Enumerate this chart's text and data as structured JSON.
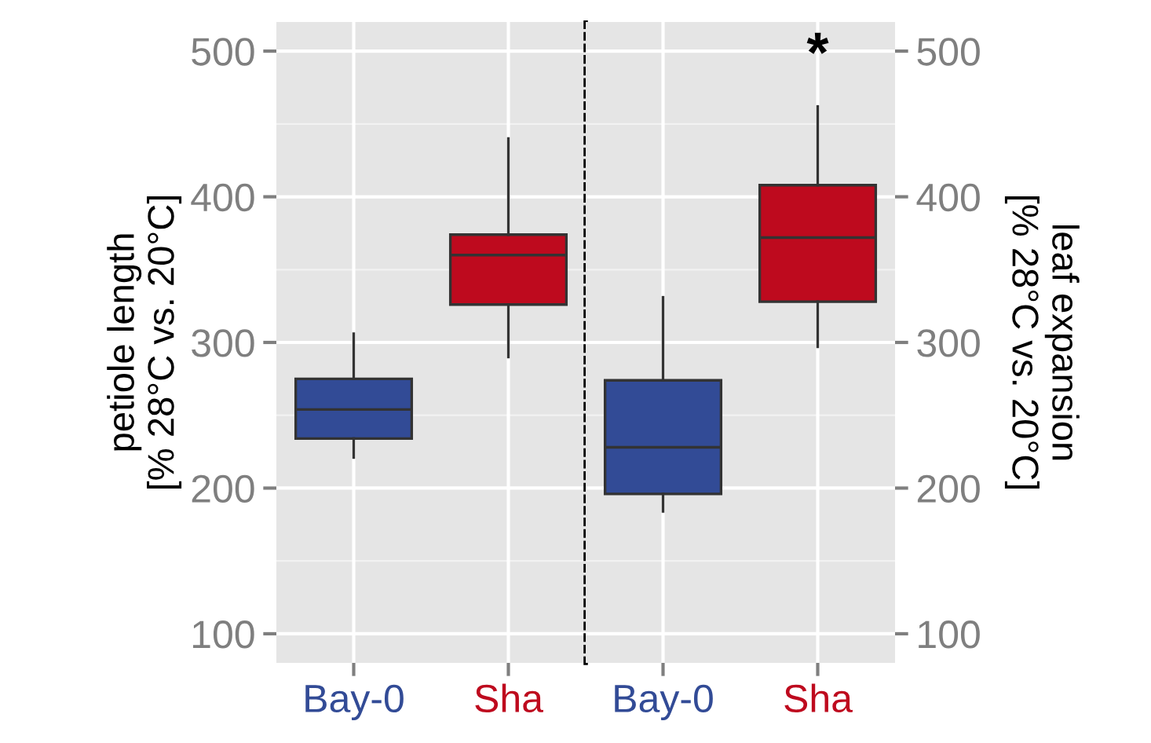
{
  "chart_data": [
    {
      "type": "box",
      "ylabel": "petiole length\n[% 28°C vs. 20°C]",
      "categories": [
        "Bay-0",
        "Sha"
      ],
      "colors": [
        "#324b96",
        "#be0a1e"
      ],
      "boxes": [
        {
          "low": 221,
          "q1": 234,
          "median": 254,
          "q3": 275,
          "high": 306
        },
        {
          "low": 290,
          "q1": 326,
          "median": 360,
          "q3": 374,
          "high": 440
        }
      ],
      "ylim": [
        80,
        520
      ],
      "yticks": [
        100,
        200,
        300,
        400,
        500
      ],
      "grid": true
    },
    {
      "type": "box",
      "ylabel": "leaf expansion\n[% 28°C vs. 20°C]",
      "categories": [
        "Bay-0",
        "Sha"
      ],
      "colors": [
        "#324b96",
        "#be0a1e"
      ],
      "boxes": [
        {
          "low": 184,
          "q1": 196,
          "median": 228,
          "q3": 274,
          "high": 331
        },
        {
          "low": 297,
          "q1": 328,
          "median": 372,
          "q3": 408,
          "high": 462
        }
      ],
      "ylim": [
        80,
        520
      ],
      "yticks": [
        100,
        200,
        300,
        400,
        500
      ],
      "annotations": [
        "*"
      ],
      "grid": true
    }
  ]
}
